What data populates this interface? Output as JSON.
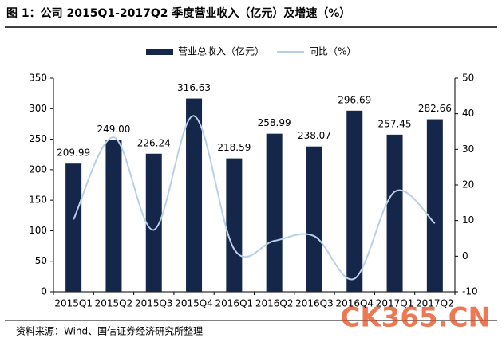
{
  "chart_data": {
    "type": "bar-line",
    "title": "图 1：公司 2015Q1-2017Q2 季度营业收入（亿元）及增速（%）",
    "source": "资料来源：Wind、国信证券经济研究所整理",
    "watermark": "CK365.CN",
    "categories": [
      "2015Q1",
      "2015Q2",
      "2015Q3",
      "2015Q4",
      "2016Q1",
      "2016Q2",
      "2016Q3",
      "2016Q4",
      "2017Q1",
      "2017Q2"
    ],
    "series": [
      {
        "name": "营业总收入（亿元）",
        "color": "#14264a",
        "type": "bar",
        "values": [
          209.99,
          249,
          226.24,
          316.63,
          218.59,
          258.99,
          238.07,
          296.69,
          257.45,
          282.66
        ],
        "value_labels": [
          "209.99",
          "249.00",
          "226.24",
          "316.63",
          "218.59",
          "258.99",
          "238.07",
          "296.69",
          "257.45",
          "282.66"
        ]
      },
      {
        "name": "同比（%）",
        "color": "#b7d0e8",
        "type": "line",
        "axis": "y2",
        "values": [
          10.3,
          33.4,
          7.4,
          39.4,
          2,
          4.3,
          5.6,
          -6.3,
          18.1,
          9.2
        ]
      }
    ],
    "ylim": [
      0,
      350
    ],
    "yticks": [
      0,
      50,
      100,
      150,
      200,
      250,
      300,
      350
    ],
    "y2lim": [
      -10,
      50
    ],
    "y2ticks": [
      -10,
      0,
      10,
      20,
      30,
      40,
      50
    ],
    "legend": "top"
  }
}
